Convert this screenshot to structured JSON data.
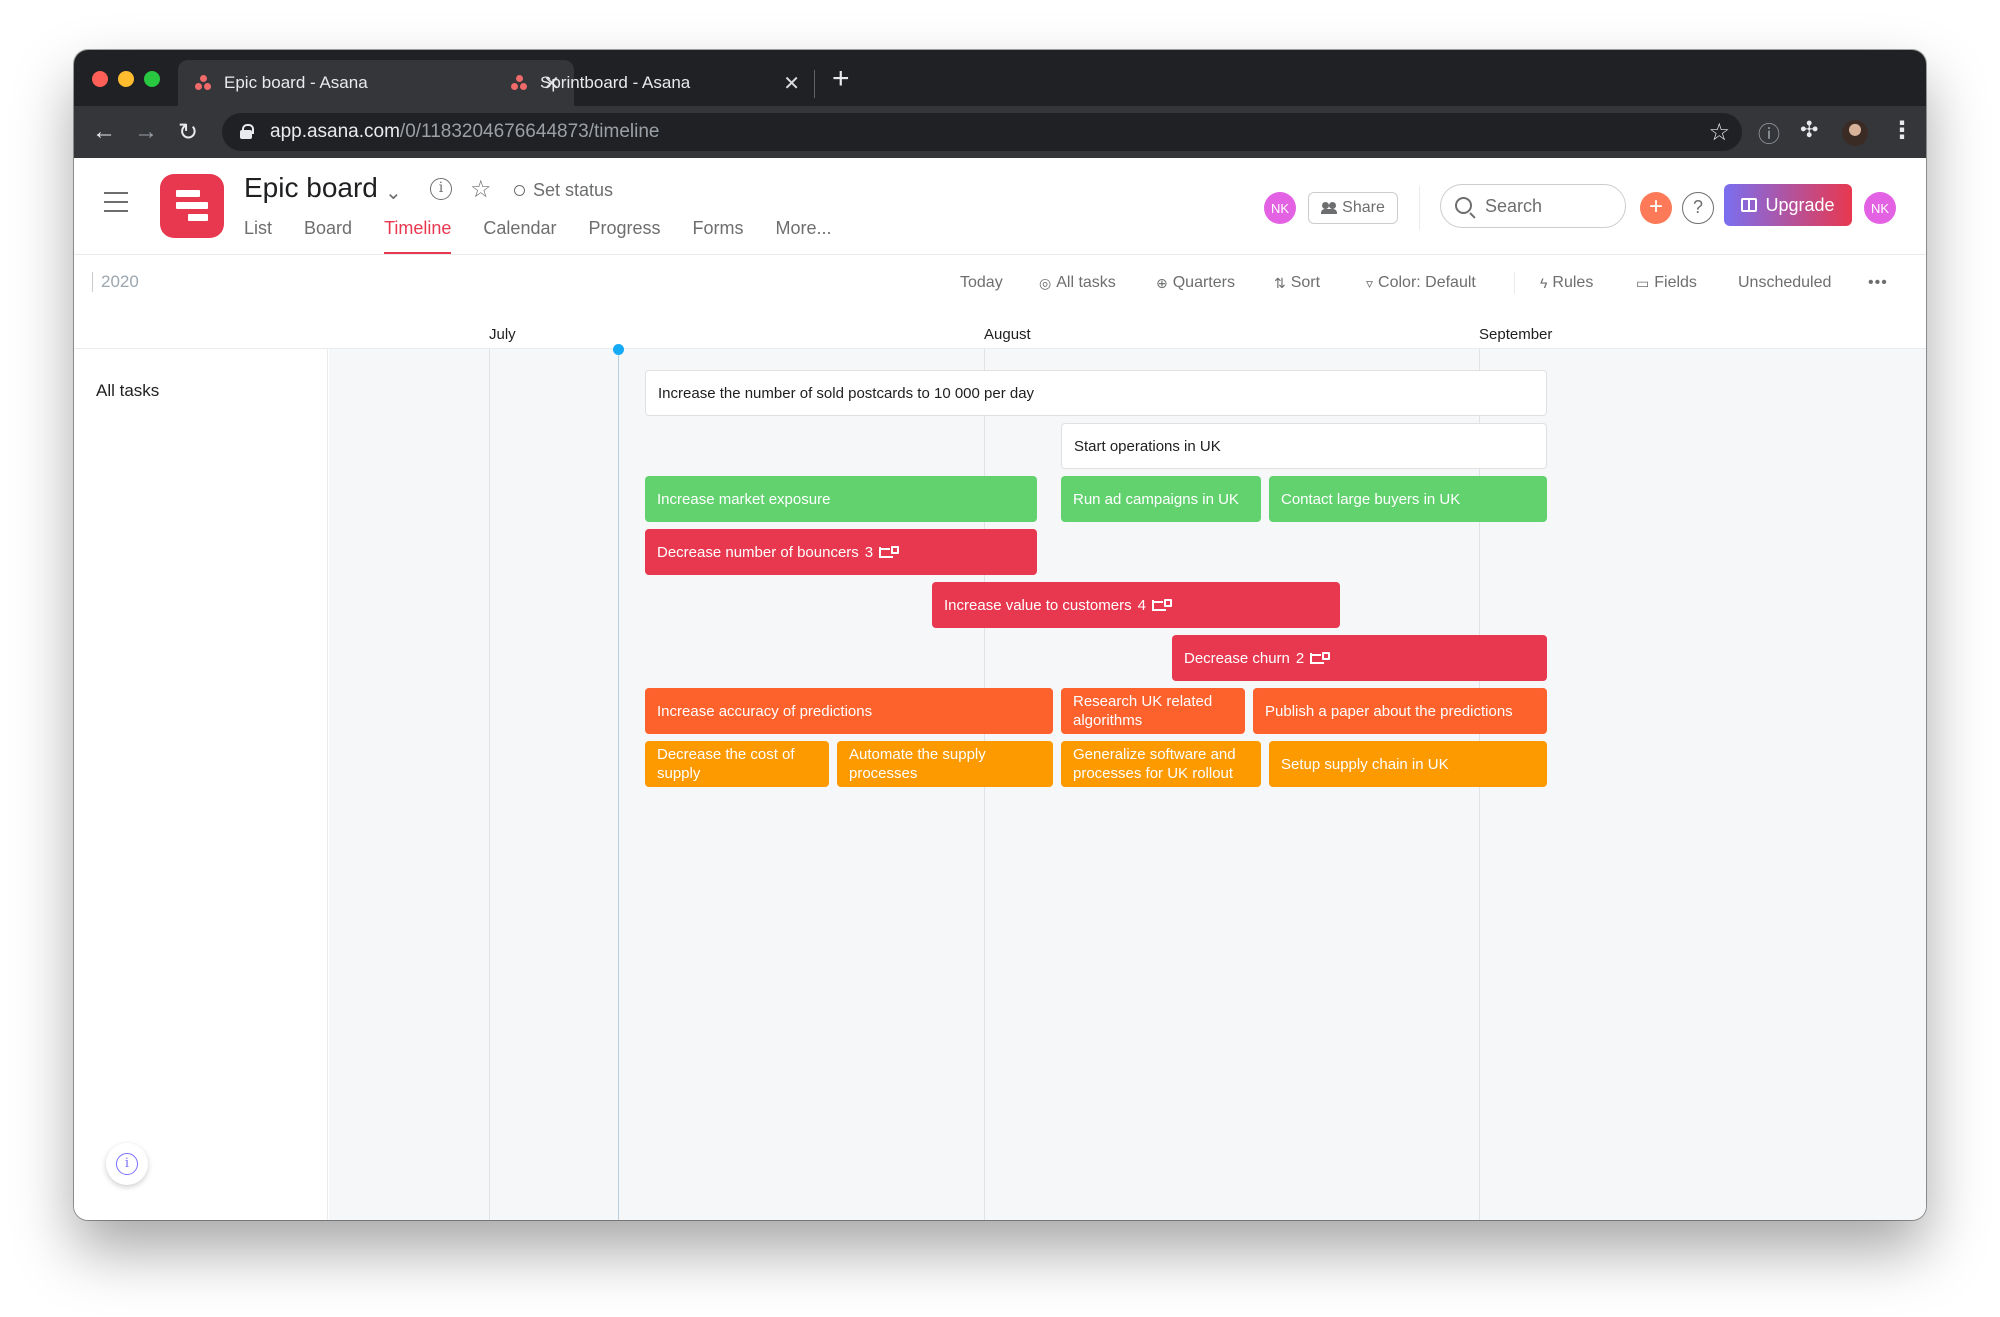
{
  "browser": {
    "tabs": [
      {
        "title": "Epic board - Asana",
        "active": true
      },
      {
        "title": "Sprintboard - Asana",
        "active": false
      }
    ],
    "tab_close_glyph": "✕",
    "new_tab_glyph": "+",
    "url_host": "app.asana.com",
    "url_path": "/0/1183204676644873/timeline"
  },
  "header": {
    "project_title": "Epic board",
    "set_status": "Set status",
    "tabs": [
      "List",
      "Board",
      "Timeline",
      "Calendar",
      "Progress",
      "Forms",
      "More..."
    ],
    "active_tab": "Timeline",
    "avatar_initials": "NK",
    "share_label": "Share",
    "search_placeholder": "Search",
    "upgrade_label": "Upgrade",
    "help_glyph": "?",
    "plus_glyph": "+"
  },
  "timeline_toolbar": {
    "year": "2020",
    "items": [
      "Today",
      "All tasks",
      "Quarters",
      "Sort",
      "Color: Default",
      "Rules",
      "Fields",
      "Unscheduled"
    ],
    "more_glyph": "•••"
  },
  "months": [
    "July",
    "August",
    "September"
  ],
  "left_pane": {
    "section_label": "All tasks"
  },
  "tasks": [
    {
      "title": "Increase the number of sold postcards to 10 000 per day",
      "color": "white"
    },
    {
      "title": "Start operations in UK",
      "color": "white"
    },
    {
      "title": "Increase market exposure",
      "color": "green"
    },
    {
      "title": "Run ad campaigns in UK",
      "color": "green"
    },
    {
      "title": "Contact large buyers in UK",
      "color": "green"
    },
    {
      "title": "Decrease number of bouncers",
      "color": "red",
      "subtasks": "3"
    },
    {
      "title": "Increase value to customers",
      "color": "red",
      "subtasks": "4"
    },
    {
      "title": "Decrease churn",
      "color": "red",
      "subtasks": "2"
    },
    {
      "title": "Increase accuracy of predictions",
      "color": "orange"
    },
    {
      "title": "Research UK related algorithms",
      "color": "orange"
    },
    {
      "title": "Publish a paper about the predictions",
      "color": "orange"
    },
    {
      "title": "Decrease the cost of supply",
      "color": "yellow"
    },
    {
      "title": "Automate the supply processes",
      "color": "yellow"
    },
    {
      "title": "Generalize software and processes for UK rollout",
      "color": "yellow"
    },
    {
      "title": "Setup supply chain in UK",
      "color": "yellow"
    }
  ],
  "colors": {
    "white": "#ffffff",
    "green": "#62d26f",
    "red": "#e8384f",
    "orange": "#fd612c",
    "yellow": "#fd9a00",
    "accent": "#e8384f",
    "today_marker": "#14aaf5"
  }
}
